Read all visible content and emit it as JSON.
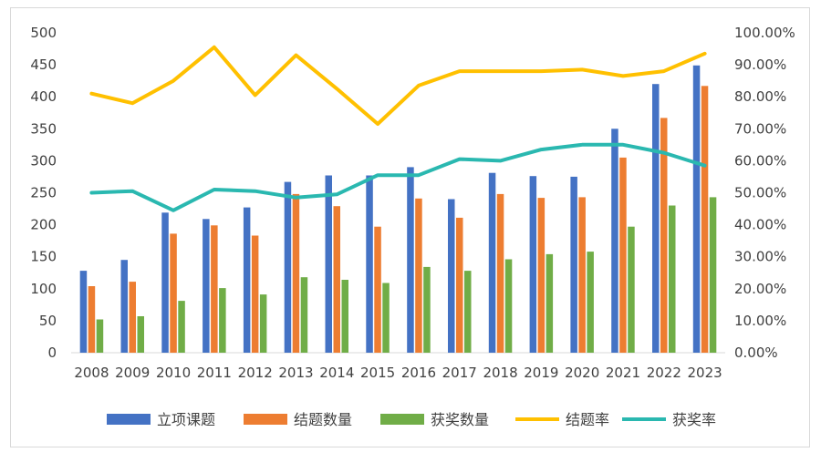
{
  "chart_data": {
    "type": "bar",
    "categories": [
      "2008",
      "2009",
      "2010",
      "2011",
      "2012",
      "2013",
      "2014",
      "2015",
      "2016",
      "2017",
      "2018",
      "2019",
      "2020",
      "2021",
      "2022",
      "2023"
    ],
    "series": [
      {
        "name": "立项课题",
        "kind": "bar",
        "axis": "left",
        "color": "#4472c4",
        "values": [
          128,
          145,
          219,
          209,
          227,
          267,
          277,
          277,
          290,
          240,
          281,
          276,
          275,
          350,
          420,
          449
        ]
      },
      {
        "name": "结题数量",
        "kind": "bar",
        "axis": "left",
        "color": "#ed7d31",
        "values": [
          104,
          111,
          186,
          199,
          183,
          248,
          229,
          197,
          241,
          211,
          248,
          242,
          243,
          305,
          367,
          417
        ]
      },
      {
        "name": "获奖数量",
        "kind": "bar",
        "axis": "left",
        "color": "#70ad47",
        "values": [
          52,
          57,
          81,
          101,
          91,
          118,
          114,
          109,
          134,
          128,
          146,
          154,
          158,
          197,
          230,
          243
        ]
      },
      {
        "name": "结题率",
        "kind": "line",
        "axis": "right",
        "color": "#ffc000",
        "values": [
          81.0,
          78.0,
          85.0,
          95.5,
          80.5,
          93.0,
          82.5,
          71.5,
          83.5,
          88.0,
          88.0,
          88.0,
          88.5,
          86.5,
          88.0,
          93.5
        ]
      },
      {
        "name": "获奖率",
        "kind": "line",
        "axis": "right",
        "color": "#2ab8b0",
        "values": [
          50.0,
          50.5,
          44.5,
          51.0,
          50.5,
          48.5,
          49.5,
          55.5,
          55.5,
          60.5,
          60.0,
          63.5,
          65.0,
          65.0,
          62.5,
          58.5
        ]
      }
    ],
    "y_left": {
      "range": [
        0,
        500
      ],
      "ticks": [
        "0",
        "50",
        "100",
        "150",
        "200",
        "250",
        "300",
        "350",
        "400",
        "450",
        "500"
      ]
    },
    "y_right": {
      "range": [
        0,
        100
      ],
      "unit": "%",
      "ticks": [
        "0.00%",
        "10.00%",
        "20.00%",
        "30.00%",
        "40.00%",
        "50.00%",
        "60.00%",
        "70.00%",
        "80.00%",
        "90.00%",
        "100.00%"
      ]
    },
    "legend": {
      "position": "bottom"
    },
    "grid": false
  }
}
